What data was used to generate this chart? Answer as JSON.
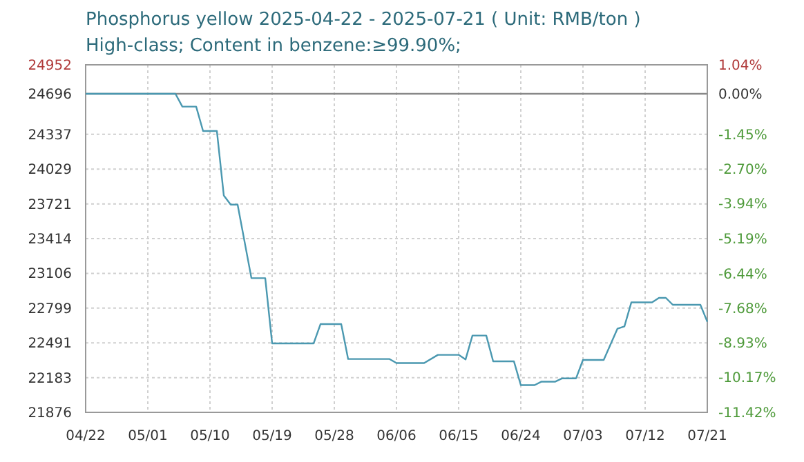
{
  "chart_data": {
    "type": "line",
    "title": "Phosphorus yellow 2025-04-22 - 2025-07-21    ( Unit: RMB/ton )",
    "subtitle": "High-class; Content in benzene:≥99.90%;",
    "x": [
      "2025-04-22",
      "2025-05-05",
      "2025-05-06",
      "2025-05-08",
      "2025-05-09",
      "2025-05-11",
      "2025-05-12",
      "2025-05-13",
      "2025-05-14",
      "2025-05-16",
      "2025-05-18",
      "2025-05-19",
      "2025-05-25",
      "2025-05-26",
      "2025-05-29",
      "2025-05-30",
      "2025-06-05",
      "2025-06-06",
      "2025-06-10",
      "2025-06-12",
      "2025-06-15",
      "2025-06-16",
      "2025-06-17",
      "2025-06-19",
      "2025-06-20",
      "2025-06-23",
      "2025-06-24",
      "2025-06-26",
      "2025-06-27",
      "2025-06-29",
      "2025-06-30",
      "2025-07-02",
      "2025-07-03",
      "2025-07-06",
      "2025-07-08",
      "2025-07-09",
      "2025-07-10",
      "2025-07-13",
      "2025-07-14",
      "2025-07-15",
      "2025-07-16",
      "2025-07-20",
      "2025-07-21"
    ],
    "series": [
      {
        "color": "#4a98b0",
        "values": [
          24696,
          24696,
          24582,
          24582,
          24366,
          24366,
          23796,
          23715,
          23715,
          23064,
          23064,
          22486,
          22486,
          22657,
          22657,
          22348,
          22348,
          22312,
          22312,
          22385,
          22385,
          22344,
          22556,
          22556,
          22328,
          22328,
          22117,
          22117,
          22148,
          22148,
          22177,
          22177,
          22340,
          22340,
          22617,
          22637,
          22849,
          22849,
          22889,
          22889,
          22828,
          22828,
          22678
        ]
      }
    ],
    "xlim": [
      "2025-04-22",
      "2025-07-21"
    ],
    "xticks": [
      {
        "value": "2025-04-22",
        "label": "04/22"
      },
      {
        "value": "2025-05-01",
        "label": "05/01"
      },
      {
        "value": "2025-05-10",
        "label": "05/10"
      },
      {
        "value": "2025-05-19",
        "label": "05/19"
      },
      {
        "value": "2025-05-28",
        "label": "05/28"
      },
      {
        "value": "2025-06-06",
        "label": "06/06"
      },
      {
        "value": "2025-06-15",
        "label": "06/15"
      },
      {
        "value": "2025-06-24",
        "label": "06/24"
      },
      {
        "value": "2025-07-03",
        "label": "07/03"
      },
      {
        "value": "2025-07-12",
        "label": "07/12"
      },
      {
        "value": "2025-07-21",
        "label": "07/21"
      }
    ],
    "ylim": [
      21876,
      24952
    ],
    "yticks": [
      21876,
      22183,
      22491,
      22799,
      23106,
      23414,
      23721,
      24029,
      24337,
      24696,
      24952
    ],
    "y2lim": [
      -11.42,
      1.04
    ],
    "y2ticks": [
      {
        "value": -11.42,
        "label": "-11.42%"
      },
      {
        "value": -10.17,
        "label": "-10.17%"
      },
      {
        "value": -8.93,
        "label": "-8.93%"
      },
      {
        "value": -7.68,
        "label": "-7.68%"
      },
      {
        "value": -6.44,
        "label": "-6.44%"
      },
      {
        "value": -5.19,
        "label": "-5.19%"
      },
      {
        "value": -3.94,
        "label": "-3.94%"
      },
      {
        "value": -2.7,
        "label": "-2.70%"
      },
      {
        "value": -1.45,
        "label": "-1.45%"
      },
      {
        "value": 0,
        "label": "0.00%"
      },
      {
        "value": 1.04,
        "label": "1.04%"
      }
    ],
    "ref_lines": [
      {
        "axis": "y",
        "value": 24696,
        "color": "#888888"
      }
    ],
    "grid": true,
    "marker": "none",
    "line_style": "solid"
  }
}
